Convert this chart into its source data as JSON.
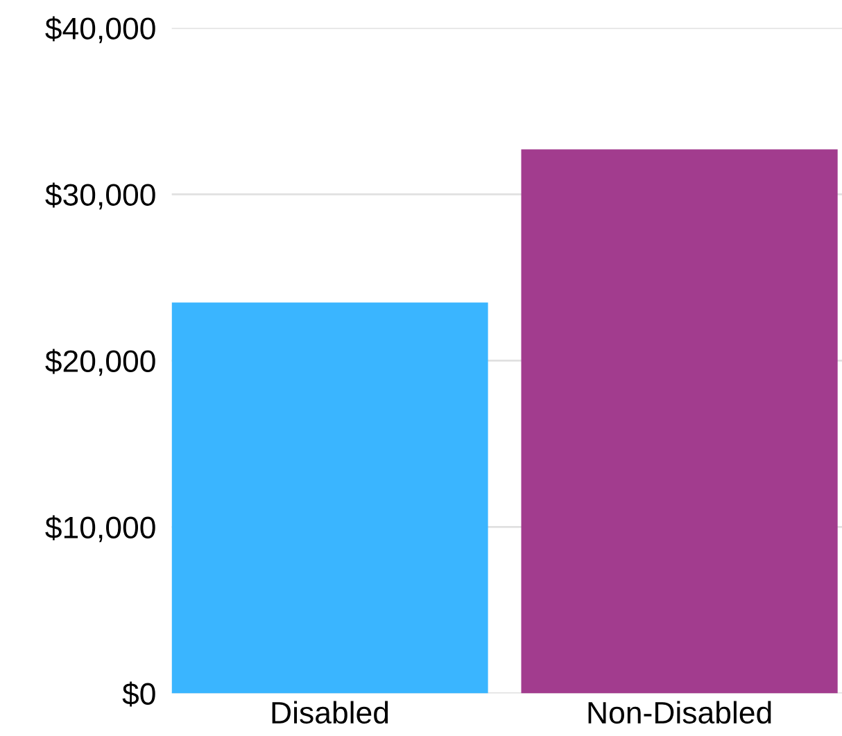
{
  "chart_data": {
    "type": "bar",
    "categories": [
      "Disabled",
      "Non-Disabled"
    ],
    "values": [
      23500,
      32700
    ],
    "colors": [
      "#3ab5ff",
      "#a23c8e"
    ],
    "ylim": [
      0,
      40000
    ],
    "yticks": [
      {
        "value": 0,
        "label": "$0"
      },
      {
        "value": 10000,
        "label": "$10,000"
      },
      {
        "value": 20000,
        "label": "$20,000"
      },
      {
        "value": 30000,
        "label": "$30,000"
      },
      {
        "value": 40000,
        "label": "$40,000"
      }
    ],
    "grid": "y"
  }
}
